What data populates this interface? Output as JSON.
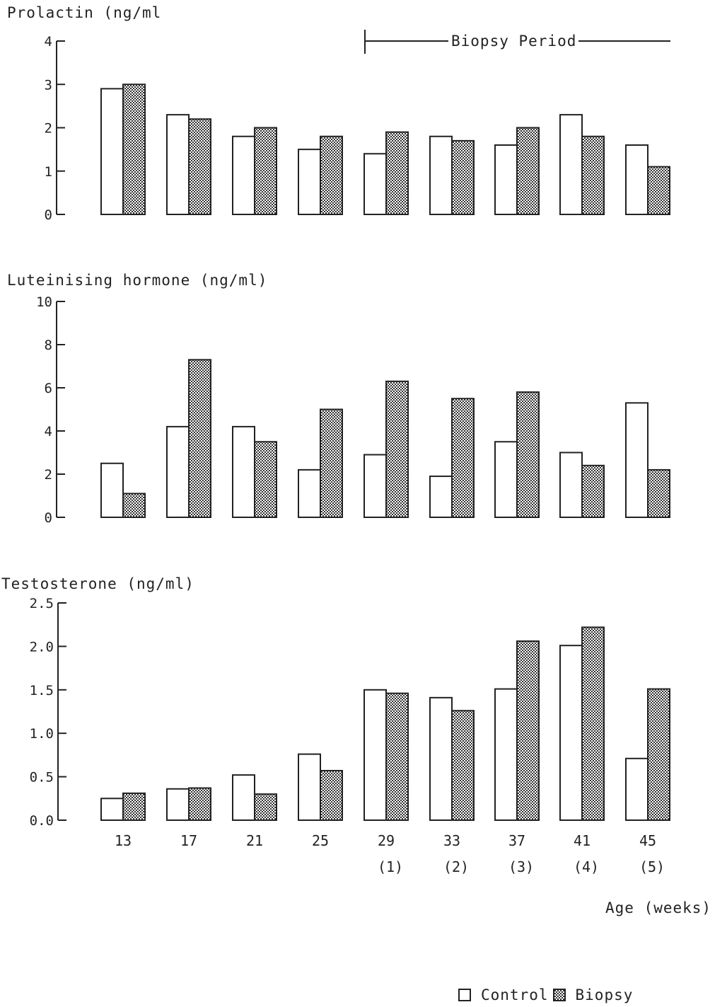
{
  "chart_data": [
    {
      "type": "bar",
      "title": "Prolactin (ng/ml",
      "categories": [
        "13",
        "17",
        "21",
        "25",
        "29",
        "33",
        "37",
        "41",
        "45"
      ],
      "series": [
        {
          "name": "Control",
          "values": [
            2.9,
            2.3,
            1.8,
            1.5,
            1.4,
            1.8,
            1.6,
            2.3,
            1.6
          ]
        },
        {
          "name": "Biopsy",
          "values": [
            3.0,
            2.2,
            2.0,
            1.8,
            1.9,
            1.7,
            2.0,
            1.8,
            1.1
          ]
        }
      ],
      "ylim": [
        0,
        4
      ],
      "yticks": [
        "0",
        "1",
        "2",
        "3",
        "4"
      ],
      "annotation": "Biopsy Period"
    },
    {
      "type": "bar",
      "title": "Luteinising hormone (ng/ml)",
      "categories": [
        "13",
        "17",
        "21",
        "25",
        "29",
        "33",
        "37",
        "41",
        "45"
      ],
      "series": [
        {
          "name": "Control",
          "values": [
            2.5,
            4.2,
            4.2,
            2.2,
            2.9,
            1.9,
            3.5,
            3.0,
            5.3
          ]
        },
        {
          "name": "Biopsy",
          "values": [
            1.1,
            7.3,
            3.5,
            5.0,
            6.3,
            5.5,
            5.8,
            2.4,
            2.2
          ]
        }
      ],
      "ylim": [
        0,
        10
      ],
      "yticks": [
        "0",
        "2",
        "4",
        "6",
        "8",
        "10"
      ]
    },
    {
      "type": "bar",
      "title": "Testosterone (ng/ml)",
      "categories": [
        "13",
        "17",
        "21",
        "25",
        "29",
        "33",
        "37",
        "41",
        "45"
      ],
      "sublabels": [
        "",
        "",
        "",
        "",
        "(1)",
        "(2)",
        "(3)",
        "(4)",
        "(5)"
      ],
      "series": [
        {
          "name": "Control",
          "values": [
            0.25,
            0.36,
            0.52,
            0.76,
            1.5,
            1.41,
            1.51,
            2.01,
            0.71
          ]
        },
        {
          "name": "Biopsy",
          "values": [
            0.31,
            0.37,
            0.3,
            0.57,
            1.46,
            1.26,
            2.06,
            2.22,
            1.51
          ]
        }
      ],
      "ylim": [
        0,
        2.5
      ],
      "yticks": [
        "0.0",
        "0.5",
        "1.0",
        "1.5",
        "2.0",
        "2.5"
      ],
      "xlabel": "Age (weeks)"
    }
  ],
  "legend": {
    "control": "Control",
    "biopsy": "Biopsy"
  }
}
